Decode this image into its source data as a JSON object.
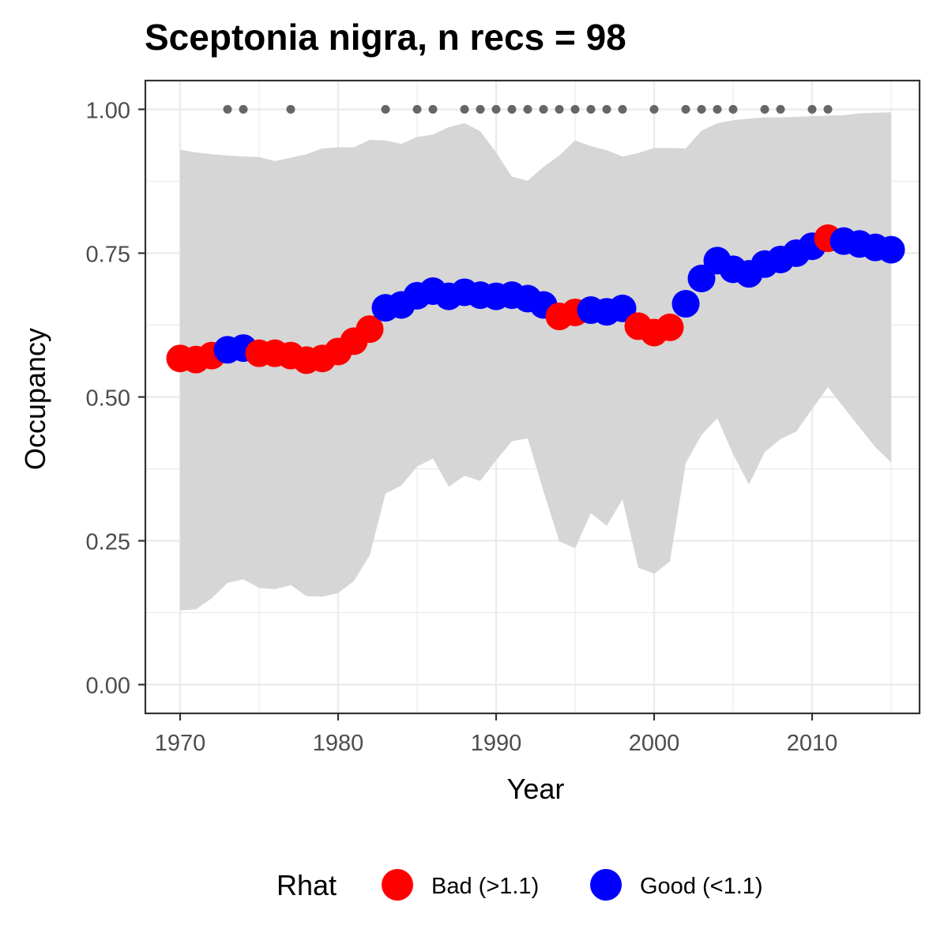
{
  "chart_data": {
    "type": "line",
    "title": "Sceptonia nigra, n recs = 98",
    "xlabel": "Year",
    "ylabel": "Occupancy",
    "xlim": [
      1967.8,
      2016.8
    ],
    "ylim": [
      -0.05,
      1.05
    ],
    "x_ticks": [
      1970,
      1980,
      1990,
      2000,
      2010
    ],
    "x_tick_labels": [
      "1970",
      "1980",
      "1990",
      "2000",
      "2010"
    ],
    "y_ticks": [
      0,
      0.25,
      0.5,
      0.75,
      1
    ],
    "y_tick_labels": [
      "0.00",
      "0.25",
      "0.50",
      "0.75",
      "1.00"
    ],
    "grid": true,
    "x": [
      1970,
      1971,
      1972,
      1973,
      1974,
      1975,
      1976,
      1977,
      1978,
      1979,
      1980,
      1981,
      1982,
      1983,
      1984,
      1985,
      1986,
      1987,
      1988,
      1989,
      1990,
      1991,
      1992,
      1993,
      1994,
      1995,
      1996,
      1997,
      1998,
      1999,
      2000,
      2001,
      2002,
      2003,
      2004,
      2005,
      2006,
      2007,
      2008,
      2009,
      2010,
      2011,
      2012,
      2013,
      2014,
      2015
    ],
    "occupancy": [
      0.567,
      0.565,
      0.572,
      0.582,
      0.585,
      0.576,
      0.576,
      0.572,
      0.564,
      0.567,
      0.579,
      0.597,
      0.618,
      0.655,
      0.66,
      0.676,
      0.684,
      0.675,
      0.682,
      0.677,
      0.675,
      0.677,
      0.671,
      0.66,
      0.64,
      0.647,
      0.651,
      0.648,
      0.654,
      0.623,
      0.612,
      0.621,
      0.662,
      0.706,
      0.737,
      0.722,
      0.714,
      0.731,
      0.739,
      0.75,
      0.762,
      0.776,
      0.771,
      0.766,
      0.76,
      0.756
    ],
    "rhat": [
      "Bad",
      "Bad",
      "Bad",
      "Good",
      "Good",
      "Bad",
      "Bad",
      "Bad",
      "Bad",
      "Bad",
      "Bad",
      "Bad",
      "Bad",
      "Good",
      "Good",
      "Good",
      "Good",
      "Good",
      "Good",
      "Good",
      "Good",
      "Good",
      "Good",
      "Good",
      "Bad",
      "Bad",
      "Good",
      "Good",
      "Good",
      "Bad",
      "Bad",
      "Bad",
      "Good",
      "Good",
      "Good",
      "Good",
      "Good",
      "Good",
      "Good",
      "Good",
      "Good",
      "Bad",
      "Good",
      "Good",
      "Good",
      "Good"
    ],
    "upper_95": [
      0.93,
      0.925,
      0.922,
      0.92,
      0.918,
      0.917,
      0.91,
      0.916,
      0.922,
      0.932,
      0.934,
      0.934,
      0.947,
      0.946,
      0.94,
      0.952,
      0.956,
      0.969,
      0.976,
      0.962,
      0.925,
      0.883,
      0.876,
      0.9,
      0.92,
      0.946,
      0.936,
      0.929,
      0.918,
      0.924,
      0.933,
      0.933,
      0.932,
      0.963,
      0.976,
      0.981,
      0.984,
      0.986,
      0.986,
      0.987,
      0.988,
      0.989,
      0.99,
      0.993,
      0.994,
      0.995
    ],
    "lower_95": [
      0.129,
      0.131,
      0.15,
      0.177,
      0.183,
      0.168,
      0.166,
      0.173,
      0.154,
      0.153,
      0.159,
      0.18,
      0.225,
      0.332,
      0.346,
      0.379,
      0.393,
      0.344,
      0.363,
      0.354,
      0.39,
      0.423,
      0.428,
      0.336,
      0.249,
      0.237,
      0.298,
      0.276,
      0.322,
      0.203,
      0.193,
      0.214,
      0.385,
      0.434,
      0.463,
      0.4,
      0.348,
      0.404,
      0.427,
      0.44,
      0.479,
      0.517,
      0.482,
      0.447,
      0.413,
      0.386
    ],
    "record_years": [
      1973,
      1974,
      1977,
      1983,
      1985,
      1986,
      1988,
      1989,
      1990,
      1991,
      1992,
      1993,
      1994,
      1995,
      1996,
      1997,
      1998,
      2000,
      2002,
      2003,
      2004,
      2005,
      2007,
      2008,
      2010,
      2011
    ],
    "record_marker_value": 1.0,
    "legend": {
      "title": "Rhat",
      "position": "bottom",
      "entries": [
        {
          "key": "Bad",
          "label": "Bad (>1.1)",
          "color": "#FF0000"
        },
        {
          "key": "Good",
          "label": "Good (<1.1)",
          "color": "#0000FF"
        }
      ]
    },
    "colors": {
      "ribbon": "#D6D6D6",
      "record_dot": "#666666",
      "grid_major": "#EBEBEB",
      "panel_border": "#333333"
    }
  }
}
